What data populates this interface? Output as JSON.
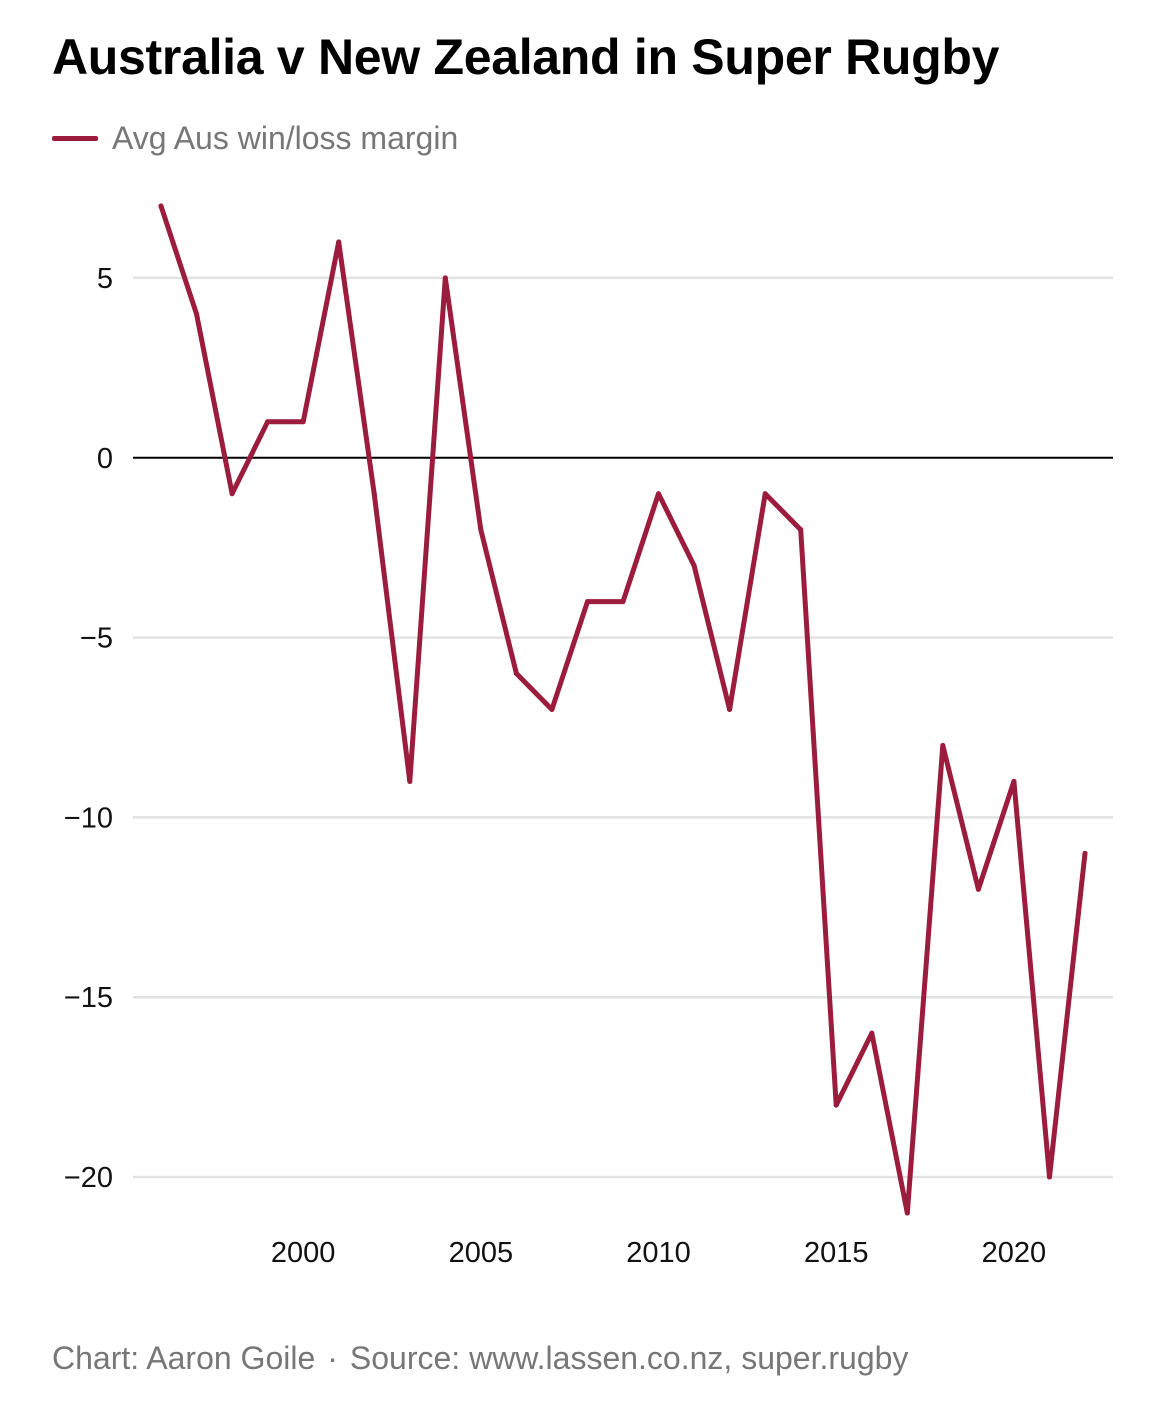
{
  "chart_data": {
    "type": "line",
    "title": "Australia v New Zealand in Super Rugby",
    "xlabel": "",
    "ylabel": "",
    "x": [
      1996,
      1997,
      1998,
      1999,
      2000,
      2001,
      2002,
      2003,
      2004,
      2005,
      2006,
      2007,
      2008,
      2009,
      2010,
      2011,
      2012,
      2013,
      2014,
      2015,
      2016,
      2017,
      2018,
      2019,
      2020,
      2021,
      2022
    ],
    "series": [
      {
        "name": "Avg Aus win/loss margin",
        "color": "#9b1c3c",
        "values": [
          7,
          4,
          -1,
          1,
          1,
          6,
          -1,
          -9,
          5,
          -2,
          -6,
          -7,
          -4,
          -4,
          -1,
          -3,
          -7,
          -1,
          -2,
          -18,
          -16,
          -21,
          -8,
          -12,
          -9,
          -20,
          -11
        ]
      }
    ],
    "xticks": [
      2000,
      2005,
      2010,
      2015,
      2020
    ],
    "yticks": [
      5,
      0,
      -5,
      -10,
      -15,
      -20
    ],
    "ytick_labels": [
      "5",
      "0",
      "−5",
      "−10",
      "−15",
      "−20"
    ],
    "xlim": [
      1996,
      2022
    ],
    "ylim": [
      -21,
      7
    ],
    "grid": true,
    "legend_position": "top-left"
  },
  "footer": {
    "credit": "Chart: Aaron Goile",
    "separator": "·",
    "source": "Source: www.lassen.co.nz, super.rugby"
  }
}
